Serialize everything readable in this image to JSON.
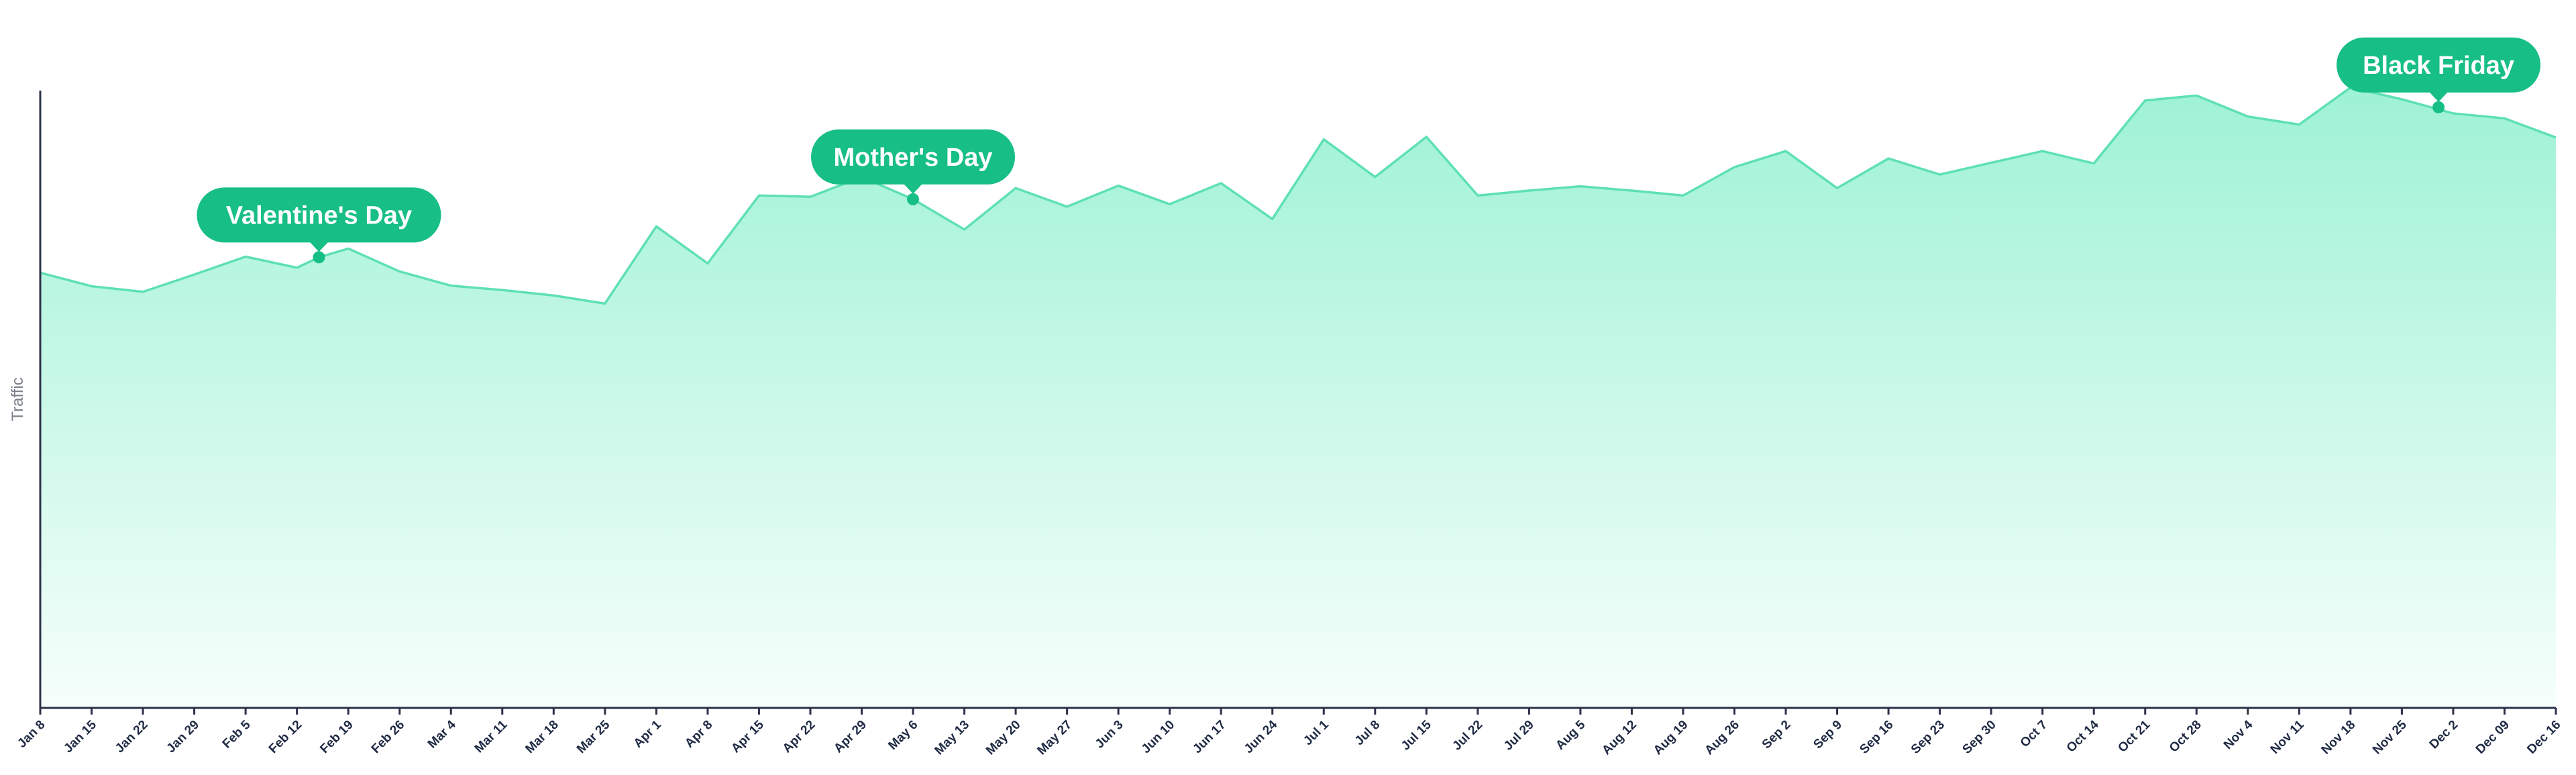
{
  "chart_data": {
    "type": "area",
    "title": "",
    "xlabel": "",
    "ylabel": "Traffic",
    "grid": false,
    "y_ticks_shown": false,
    "ylim": [
      0,
      100
    ],
    "colors": {
      "line": "#5ee0b4",
      "fill_top": "#9ef2d6",
      "fill_bottom": "#f6fffb",
      "callout": "#17be86",
      "marker": "#17be86",
      "axis": "#2b3348",
      "tick_text": "#1f2a44",
      "axis_title": "#7a7f88"
    },
    "x_tick_labels": [
      "Jan 8",
      "Jan 15",
      "Jan 22",
      "Jan 29",
      "Feb 5",
      "Feb 12",
      "Feb 19",
      "Feb 26",
      "Mar 4",
      "Mar 11",
      "Mar 18",
      "Mar 25",
      "Apr 1",
      "Apr 8",
      "Apr 15",
      "Apr 22",
      "Apr 29",
      "May 6",
      "May 13",
      "May 20",
      "May 27",
      "Jun 3",
      "Jun 10",
      "Jun 17",
      "Jun 24",
      "Jul 1",
      "Jul 8",
      "Jul 15",
      "Jul 22",
      "Jul 29",
      "Aug 5",
      "Aug 12",
      "Aug 19",
      "Aug 26",
      "Sep 2",
      "Sep 9",
      "Sep 16",
      "Sep 23",
      "Sep 30",
      "Oct 7",
      "Oct 14",
      "Oct 21",
      "Oct 28",
      "Nov 4",
      "Nov 11",
      "Nov 18",
      "Nov 25",
      "Dec 2",
      "Dec 09",
      "Dec 16"
    ],
    "series": [
      {
        "points": [
          {
            "x": "Jan 8",
            "y": 70.5
          },
          {
            "x": "Jan 15",
            "y": 68.3
          },
          {
            "x": "Jan 22",
            "y": 67.4
          },
          {
            "x": "Jan 29",
            "y": 70.2
          },
          {
            "x": "Feb 5",
            "y": 73.1
          },
          {
            "x": "Feb 12",
            "y": 71.3
          },
          {
            "x": "Feb 15",
            "y": 73.0
          },
          {
            "x": "Feb 19",
            "y": 74.4
          },
          {
            "x": "Feb 26",
            "y": 70.7
          },
          {
            "x": "Mar 4",
            "y": 68.4
          },
          {
            "x": "Mar 11",
            "y": 67.7
          },
          {
            "x": "Mar 18",
            "y": 66.8
          },
          {
            "x": "Mar 25",
            "y": 65.5
          },
          {
            "x": "Apr 1",
            "y": 78.0
          },
          {
            "x": "Apr 8",
            "y": 72.0
          },
          {
            "x": "Apr 15",
            "y": 83.0
          },
          {
            "x": "Apr 22",
            "y": 82.8
          },
          {
            "x": "Apr 29",
            "y": 86.0
          },
          {
            "x": "May 6",
            "y": 82.4
          },
          {
            "x": "May 13",
            "y": 77.5
          },
          {
            "x": "May 20",
            "y": 84.2
          },
          {
            "x": "May 27",
            "y": 81.2
          },
          {
            "x": "Jun 3",
            "y": 84.6
          },
          {
            "x": "Jun 10",
            "y": 81.6
          },
          {
            "x": "Jun 17",
            "y": 85.0
          },
          {
            "x": "Jun 24",
            "y": 79.2
          },
          {
            "x": "Jul 1",
            "y": 92.1
          },
          {
            "x": "Jul 8",
            "y": 86.0
          },
          {
            "x": "Jul 15",
            "y": 92.5
          },
          {
            "x": "Jul 22",
            "y": 83.0
          },
          {
            "x": "Jul 29",
            "y": 83.8
          },
          {
            "x": "Aug 5",
            "y": 84.5
          },
          {
            "x": "Aug 12",
            "y": 83.8
          },
          {
            "x": "Aug 19",
            "y": 83.0
          },
          {
            "x": "Aug 26",
            "y": 87.6
          },
          {
            "x": "Sep 2",
            "y": 90.2
          },
          {
            "x": "Sep 9",
            "y": 84.2
          },
          {
            "x": "Sep 16",
            "y": 89.0
          },
          {
            "x": "Sep 23",
            "y": 86.4
          },
          {
            "x": "Sep 30",
            "y": 88.3
          },
          {
            "x": "Oct 7",
            "y": 90.2
          },
          {
            "x": "Oct 14",
            "y": 88.2
          },
          {
            "x": "Oct 21",
            "y": 98.4
          },
          {
            "x": "Oct 28",
            "y": 99.2
          },
          {
            "x": "Nov 4",
            "y": 95.8
          },
          {
            "x": "Nov 11",
            "y": 94.5
          },
          {
            "x": "Nov 18",
            "y": 100.5
          },
          {
            "x": "Nov 25",
            "y": 98.6
          },
          {
            "x": "Dec 2",
            "y": 96.3
          },
          {
            "x": "Dec 09",
            "y": 95.5
          },
          {
            "x": "Dec 16",
            "y": 92.4
          }
        ]
      }
    ],
    "annotations": [
      {
        "label": "Valentine's Day",
        "x": "Feb 15",
        "y": 73.0
      },
      {
        "label": "Mother's Day",
        "x": "May 6",
        "y": 82.4
      },
      {
        "label": "Black Friday",
        "x": "Nov 30",
        "y": 97.3
      }
    ]
  }
}
